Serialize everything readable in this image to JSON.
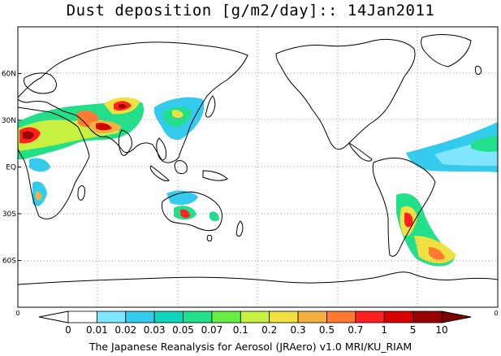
{
  "title": "Dust deposition [g/m2/day]:: 14Jan2011",
  "credit": "The Japanese Reanalysis for Aerosol (JRAero) v1.0 MRI/KU_RIAM",
  "map": {
    "lat_labels": [
      "60N",
      "30N",
      "EQ",
      "30S",
      "60S"
    ],
    "lat_values": [
      60,
      30,
      0,
      -30,
      -60
    ],
    "lat_range": [
      -90,
      90
    ],
    "lon_range": [
      0,
      360
    ],
    "grid": "dotted"
  },
  "colorbar": {
    "edge_left": "0",
    "edge_right": "0",
    "levels": [
      "0",
      "0.01",
      "0.02",
      "0.03",
      "0.05",
      "0.07",
      "0.1",
      "0.2",
      "0.3",
      "0.5",
      "0.7",
      "1",
      "5",
      "10"
    ],
    "colors": [
      "#ffffff",
      "#ffffff",
      "#80e5ff",
      "#33ccee",
      "#10d6c0",
      "#22e08a",
      "#66ee44",
      "#c8f040",
      "#f0e040",
      "#f5b040",
      "#ff7a30",
      "#ff2020",
      "#d80000",
      "#990000",
      "#800000"
    ]
  }
}
